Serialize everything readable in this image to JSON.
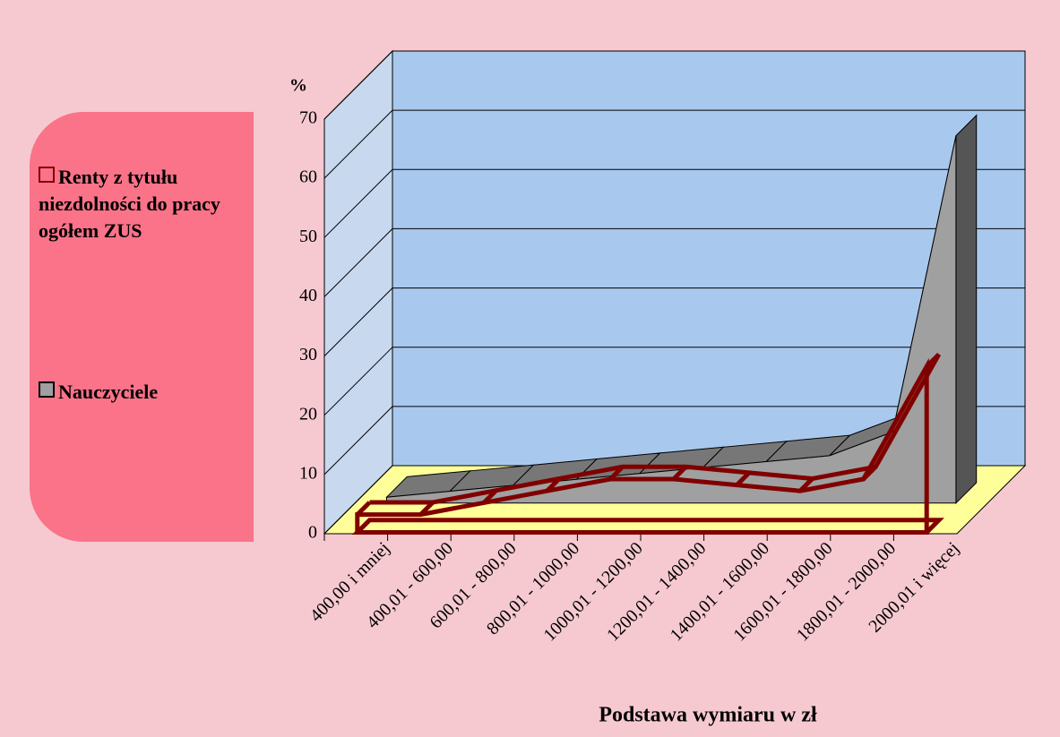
{
  "chart_data": {
    "type": "area3d",
    "y_label": "%",
    "x_label": "Podstawa wymiaru w zł",
    "categories": [
      "400,00 i mniej",
      "400,01 - 600,00",
      "600,01 - 800,00",
      "800,01 - 1000,00",
      "1000,01 - 1200,00",
      "1200,01 - 1400,00",
      "1400,01 - 1600,00",
      "1600,01 - 1800,00",
      "1800,01 - 2000,00",
      "2000,01 i więcej"
    ],
    "series": [
      {
        "name": "Renty z tytułu niezdolności do pracy ogółem ZUS",
        "color": "#800000",
        "values": [
          3,
          3,
          5,
          7,
          9,
          9,
          8,
          7,
          9,
          28
        ]
      },
      {
        "name": "Nauczyciele",
        "color": "#a0a0a0",
        "values": [
          1,
          2,
          3,
          4,
          5,
          6,
          7,
          8,
          12,
          62
        ]
      }
    ],
    "ylim": [
      0,
      70
    ],
    "yticks": [
      0,
      10,
      20,
      30,
      40,
      50,
      60,
      70
    ],
    "grid": true
  }
}
